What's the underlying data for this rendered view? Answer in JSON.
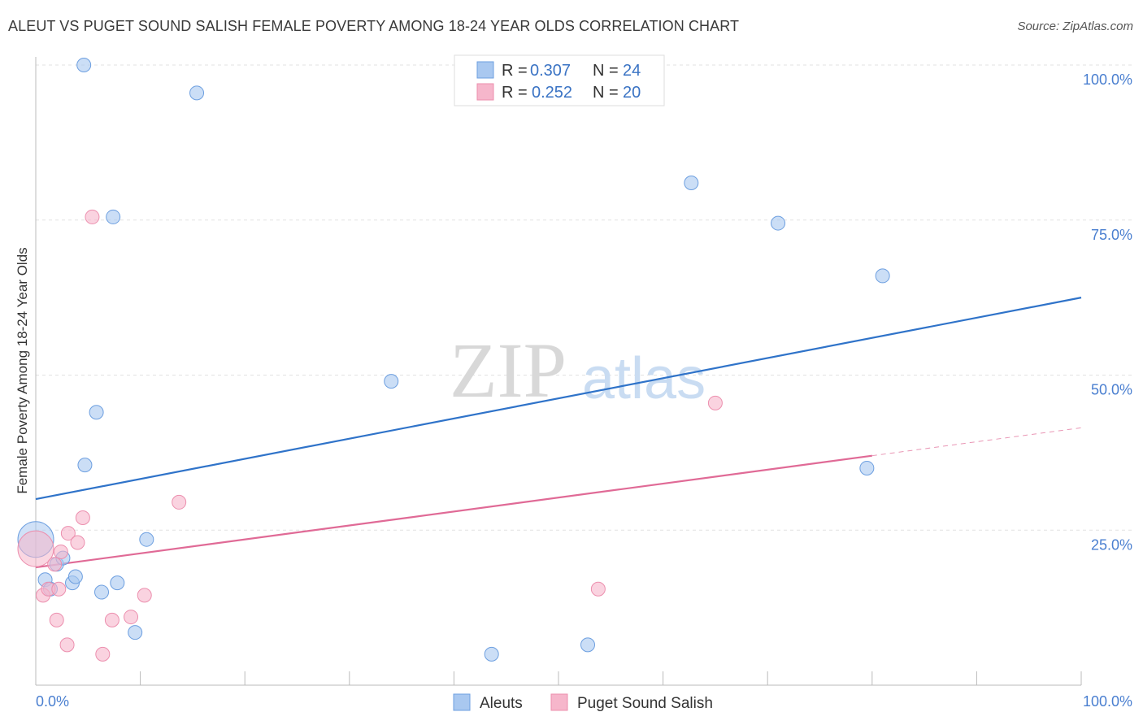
{
  "header": {
    "title": "ALEUT VS PUGET SOUND SALISH FEMALE POVERTY AMONG 18-24 YEAR OLDS CORRELATION CHART",
    "source": "Source: ZipAtlas.com"
  },
  "watermark": {
    "part1": "ZIP",
    "part2": "atlas"
  },
  "legend": {
    "rows": [
      {
        "r_label": "R =",
        "r_value": "0.307",
        "n_label": "N =",
        "n_value": "24",
        "color": "#a9c8f0"
      },
      {
        "r_label": "R =",
        "r_value": "0.252",
        "n_label": "N =",
        "n_value": "20",
        "color": "#f6b6cb"
      }
    ]
  },
  "chart_data": {
    "type": "scatter",
    "title": "ALEUT VS PUGET SOUND SALISH FEMALE POVERTY AMONG 18-24 YEAR OLDS CORRELATION CHART",
    "xlabel": "",
    "ylabel": "Female Poverty Among 18-24 Year Olds",
    "xlim": [
      0,
      100
    ],
    "ylim": [
      0,
      100
    ],
    "x_tick_labels": [
      "0.0%",
      "100.0%"
    ],
    "y_tick_labels": [
      "25.0%",
      "50.0%",
      "75.0%",
      "100.0%"
    ],
    "y_tick_values": [
      25,
      50,
      75,
      100
    ],
    "series": [
      {
        "name": "Aleuts",
        "color": "#a9c8f0",
        "stroke": "#6d9fe0",
        "line_color": "#2f73c9",
        "points": [
          {
            "x": 0,
            "y": 23.5,
            "big": true
          },
          {
            "x": 0.9,
            "y": 17.0
          },
          {
            "x": 1.4,
            "y": 15.5
          },
          {
            "x": 2.0,
            "y": 19.5
          },
          {
            "x": 2.6,
            "y": 20.5
          },
          {
            "x": 3.5,
            "y": 16.5
          },
          {
            "x": 3.8,
            "y": 17.5
          },
          {
            "x": 4.6,
            "y": 100.0
          },
          {
            "x": 4.7,
            "y": 35.5
          },
          {
            "x": 5.8,
            "y": 44.0
          },
          {
            "x": 6.3,
            "y": 15.0
          },
          {
            "x": 7.4,
            "y": 75.5
          },
          {
            "x": 7.8,
            "y": 16.5
          },
          {
            "x": 9.5,
            "y": 8.5
          },
          {
            "x": 10.6,
            "y": 23.5
          },
          {
            "x": 15.4,
            "y": 95.5
          },
          {
            "x": 34.0,
            "y": 49.0
          },
          {
            "x": 43.6,
            "y": 5.0
          },
          {
            "x": 52.8,
            "y": 6.5
          },
          {
            "x": 62.7,
            "y": 81.0
          },
          {
            "x": 71.0,
            "y": 74.5
          },
          {
            "x": 79.5,
            "y": 35.0
          },
          {
            "x": 81.0,
            "y": 66.0
          }
        ],
        "trend": {
          "x1": 0,
          "y1": 30.0,
          "x2": 100,
          "y2": 62.5
        }
      },
      {
        "name": "Puget Sound Salish",
        "color": "#f6b6cb",
        "stroke": "#ec8fae",
        "line_color": "#e06a96",
        "points": [
          {
            "x": 0,
            "y": 22.0,
            "big": true
          },
          {
            "x": 0.7,
            "y": 14.5
          },
          {
            "x": 1.2,
            "y": 15.5
          },
          {
            "x": 1.8,
            "y": 19.5
          },
          {
            "x": 2.0,
            "y": 10.5
          },
          {
            "x": 2.2,
            "y": 15.5
          },
          {
            "x": 2.4,
            "y": 21.5
          },
          {
            "x": 3.0,
            "y": 6.5
          },
          {
            "x": 3.1,
            "y": 24.5
          },
          {
            "x": 4.0,
            "y": 23.0
          },
          {
            "x": 4.5,
            "y": 27.0
          },
          {
            "x": 5.4,
            "y": 75.5
          },
          {
            "x": 6.4,
            "y": 5.0
          },
          {
            "x": 7.3,
            "y": 10.5
          },
          {
            "x": 9.1,
            "y": 11.0
          },
          {
            "x": 10.4,
            "y": 14.5
          },
          {
            "x": 13.7,
            "y": 29.5
          },
          {
            "x": 53.8,
            "y": 15.5
          },
          {
            "x": 65.0,
            "y": 45.5
          }
        ],
        "trend": {
          "x1": 0,
          "y1": 19.0,
          "x2": 80,
          "y2": 37.0
        },
        "trend_dashed": {
          "x1": 80,
          "y1": 37.0,
          "x2": 100,
          "y2": 41.5
        }
      }
    ]
  },
  "bottom_legend": {
    "items": [
      {
        "label": "Aleuts",
        "color": "#a9c8f0"
      },
      {
        "label": "Puget Sound Salish",
        "color": "#f6b6cb"
      }
    ]
  }
}
